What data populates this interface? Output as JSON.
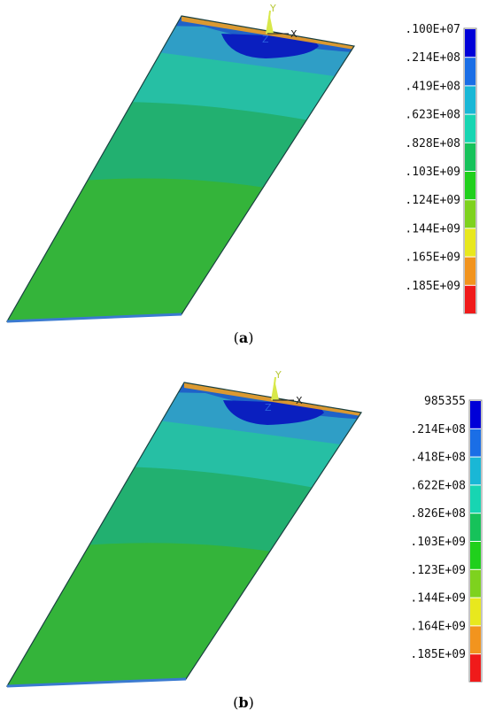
{
  "panels": [
    {
      "id": "a",
      "caption_letter": "a",
      "triad": {
        "y": "Y",
        "z": "Z",
        "x": "X"
      },
      "legend": [
        ".100E+07",
        ".214E+08",
        ".419E+08",
        ".623E+08",
        ".828E+08",
        ".103E+09",
        ".124E+09",
        ".144E+09",
        ".165E+09",
        ".185E+09"
      ]
    },
    {
      "id": "b",
      "caption_letter": "b",
      "triad": {
        "y": "Y",
        "z": "Z",
        "x": "X"
      },
      "legend": [
        "985355",
        ".214E+08",
        ".418E+08",
        ".622E+08",
        ".826E+08",
        ".103E+09",
        ".123E+09",
        ".144E+09",
        ".164E+09",
        ".185E+09"
      ]
    }
  ],
  "colors": {
    "scale": [
      "#0000d8",
      "#1a6ee6",
      "#19b7d6",
      "#17d5b2",
      "#16c25a",
      "#20d01c",
      "#7ed21e",
      "#e8e81e",
      "#f2941e",
      "#f01a1a"
    ],
    "bands": [
      "#0a1fbf",
      "#1f62c8",
      "#2f9ec6",
      "#26bfa4",
      "#22b070",
      "#27a83e",
      "#34b43a"
    ],
    "triad_y": "#d8e84a",
    "triad_z": "#2a5fe0",
    "triad_x": "#222222"
  }
}
